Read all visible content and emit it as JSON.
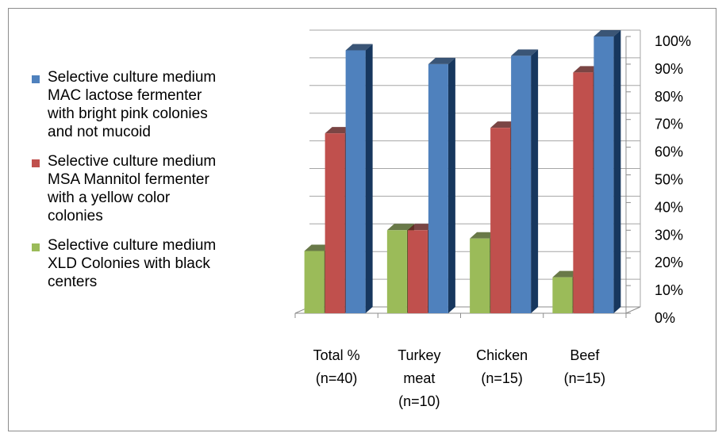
{
  "chart_data": {
    "type": "bar",
    "categories": [
      [
        "Total %",
        "(n=40)"
      ],
      [
        "Turkey",
        "meat",
        "(n=10)"
      ],
      [
        "Chicken",
        "(n=15)"
      ],
      [
        "Beef",
        "(n=15)"
      ]
    ],
    "series": [
      {
        "name": "Selective culture medium XLD Colonies with black centers",
        "legend_lines": [
          "Selective culture medium",
          "XLD Colonies with black",
          "centers"
        ],
        "color": "#9BBB59",
        "dark": "#4F6228",
        "values": [
          22.5,
          30,
          27,
          13
        ]
      },
      {
        "name": "Selective culture medium MSA  Mannitol fermenter with a yellow color colonies",
        "legend_lines": [
          "Selective culture medium",
          "MSA  Mannitol fermenter",
          "with a yellow color",
          "colonies"
        ],
        "color": "#C0504D",
        "dark": "#632523",
        "values": [
          65,
          30,
          67,
          87
        ]
      },
      {
        "name": "Selective culture medium MAC lactose fermenter with bright pink colonies and not mucoid",
        "legend_lines": [
          "Selective culture medium",
          "MAC lactose fermenter",
          "with bright pink colonies",
          "and not mucoid"
        ],
        "color": "#4F81BD",
        "dark": "#17375E",
        "values": [
          95,
          90,
          93,
          100
        ]
      }
    ],
    "legend_order": [
      2,
      1,
      0
    ],
    "y_ticks": [
      "0%",
      "10%",
      "20%",
      "30%",
      "40%",
      "50%",
      "60%",
      "70%",
      "80%",
      "90%",
      "100%"
    ],
    "ylim": [
      0,
      100
    ],
    "y_axis_side": "right",
    "grid": true,
    "legend_position": "left"
  }
}
